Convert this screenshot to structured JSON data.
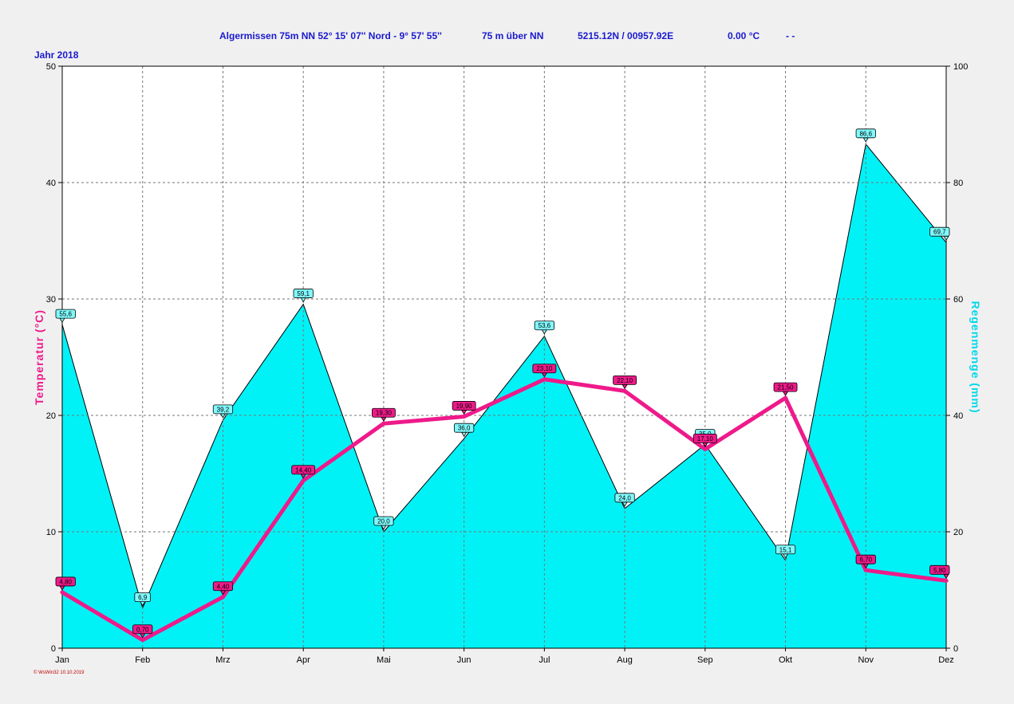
{
  "header": {
    "station": "Algermissen  75m NN  52° 15' 07'' Nord - 9° 57' 55''",
    "elevation": "75 m über NN",
    "coords": "5215.12N / 00957.92E",
    "temp": "0.00 °C",
    "dash": "- -",
    "year": "Jahr  2018"
  },
  "footer": "© WsWin32  10.10.2019",
  "colors": {
    "background": "#f0f0f0",
    "plot_background": "#ffffff",
    "rain_fill": "#00f2f6",
    "temp_line": "#ee1a8a",
    "temp_label_bg": "#ee1a8a",
    "rain_label_bg": "#7ff9fb",
    "header_text": "#1a1ad0"
  },
  "chart_data": {
    "type": "line",
    "title": "Algermissen  75m NN  52° 15' 07'' Nord - 9° 57' 55''",
    "categories": [
      "Jan",
      "Feb",
      "Mrz",
      "Apr",
      "Mai",
      "Jun",
      "Jul",
      "Aug",
      "Sep",
      "Okt",
      "Nov",
      "Dez"
    ],
    "y_left": {
      "label": "Temperatur  (°C)",
      "min": 0,
      "max": 50,
      "ticks": [
        0,
        10,
        20,
        30,
        40,
        50
      ]
    },
    "y_right": {
      "label": "Regenmenge  (mm)",
      "min": 0,
      "max": 100,
      "ticks": [
        0,
        20,
        40,
        60,
        80,
        100
      ]
    },
    "grid": true,
    "series": [
      {
        "type": "area",
        "axis": "right",
        "values": [
          55.6,
          6.9,
          39.2,
          59.1,
          20.0,
          36.0,
          53.6,
          24.0,
          35.0,
          15.1,
          86.6,
          69.7
        ],
        "labels": [
          "55,6",
          "6,9",
          "39,2",
          "59,1",
          "20,0",
          "36,0",
          "53,6",
          "24,0",
          "35,0",
          "15,1",
          "86,6",
          "69,7"
        ]
      },
      {
        "type": "line",
        "axis": "left",
        "values": [
          4.8,
          0.7,
          4.4,
          14.4,
          19.3,
          19.9,
          23.1,
          22.1,
          17.1,
          21.5,
          6.7,
          5.8
        ],
        "labels": [
          "4,80",
          "0,70",
          "4,40",
          "14,40",
          "19,30",
          "19,90",
          "23,10",
          "22,10",
          "17,10",
          "21,50",
          "6,70",
          "5,80"
        ]
      }
    ]
  }
}
